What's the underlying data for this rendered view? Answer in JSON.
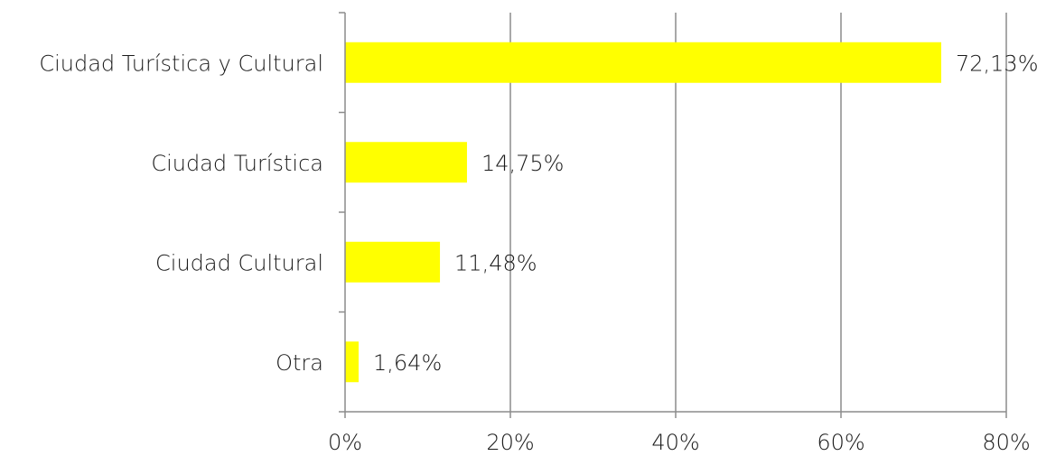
{
  "chart_data": {
    "type": "bar",
    "orientation": "horizontal",
    "title": "",
    "xlabel": "",
    "ylabel": "",
    "categories": [
      "Ciudad Turística y Cultural",
      "Ciudad Turística",
      "Ciudad Cultural",
      "Otra"
    ],
    "values": [
      72.13,
      14.75,
      11.48,
      1.64
    ],
    "value_labels": [
      "72,13%",
      "14,75%",
      "11,48%",
      "1,64%"
    ],
    "xlim": [
      0,
      80
    ],
    "x_ticks": [
      0,
      20,
      40,
      60,
      80
    ],
    "x_tick_labels": [
      "0%",
      "20%",
      "40%",
      "60%",
      "80%"
    ],
    "grid": "vertical",
    "legend": "none",
    "bar_color": "#ffff00"
  }
}
